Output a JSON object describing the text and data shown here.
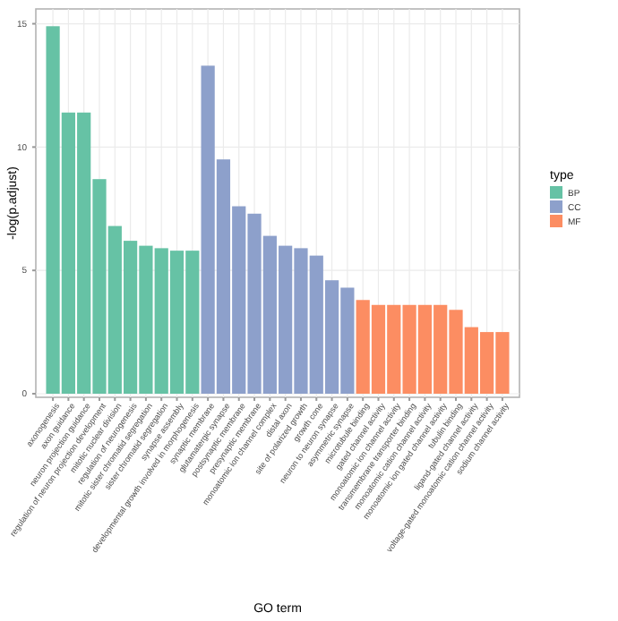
{
  "chart_data": {
    "type": "bar",
    "xlabel": "GO term",
    "ylabel": "-log(p.adjust)",
    "legend_title": "type",
    "legend": "right",
    "grid": true,
    "categories": [
      "axonogenesis",
      "axon guidance",
      "neuron projection guidance",
      "regulation of neuron projection development",
      "mitotic nuclear division",
      "regulation of neurogenesis",
      "mitotic sister chromatid segregation",
      "sister chromatid segregation",
      "synapse assembly",
      "developmental growth involved in morphogenesis",
      "synaptic membrane",
      "glutamatergic synapse",
      "postsynaptic membrane",
      "presynaptic membrane",
      "monoatomic ion channel complex",
      "distal axon",
      "site of polarized growth",
      "growth cone",
      "neuron to neuron synapse",
      "asymmetric synapse",
      "microtubule binding",
      "gated channel activity",
      "monoatomic ion channel activity",
      "transmembrane transporter binding",
      "monoatomic cation channel activity",
      "monoatomic ion gated channel activity",
      "tubulin binding",
      "ligand-gated channel activity",
      "voltage-gated monoatomic cation channel activity",
      "sodium channel activity"
    ],
    "ylim": [
      0,
      15.6
    ],
    "yticks": [
      0,
      5,
      10,
      15
    ],
    "series": [
      {
        "name": "BP",
        "color": "#66c2a5",
        "values": [
          14.9,
          11.4,
          11.4,
          8.7,
          6.8,
          6.2,
          6.0,
          5.9,
          5.8,
          5.8,
          null,
          null,
          null,
          null,
          null,
          null,
          null,
          null,
          null,
          null,
          null,
          null,
          null,
          null,
          null,
          null,
          null,
          null,
          null,
          null
        ]
      },
      {
        "name": "CC",
        "color": "#8da0cb",
        "values": [
          null,
          null,
          null,
          null,
          null,
          null,
          null,
          null,
          null,
          null,
          13.3,
          9.5,
          7.6,
          7.3,
          6.4,
          6.0,
          5.9,
          5.6,
          4.6,
          4.3,
          null,
          null,
          null,
          null,
          null,
          null,
          null,
          null,
          null,
          null
        ]
      },
      {
        "name": "MF",
        "color": "#fc8d62",
        "values": [
          null,
          null,
          null,
          null,
          null,
          null,
          null,
          null,
          null,
          null,
          null,
          null,
          null,
          null,
          null,
          null,
          null,
          null,
          null,
          null,
          3.8,
          3.6,
          3.6,
          3.6,
          3.6,
          3.6,
          3.4,
          2.7,
          2.5,
          2.5
        ]
      }
    ]
  }
}
